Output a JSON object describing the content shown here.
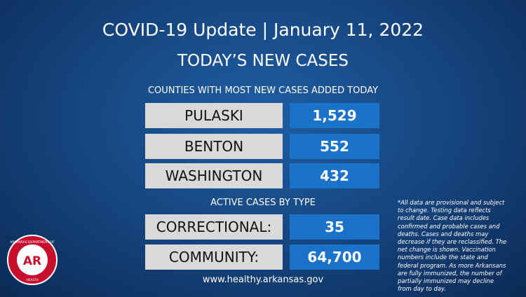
{
  "header": {
    "title": "COVID-19 Update",
    "separator": "|",
    "date": "January 11, 2022",
    "subtitle": "TODAY’S NEW CASES"
  },
  "counties": {
    "heading": "COUNTIES WITH MOST NEW CASES ADDED TODAY",
    "rows": [
      [
        "PULASKI",
        "1,529"
      ],
      [
        "BENTON",
        "552"
      ],
      [
        "WASHINGTON",
        "432"
      ]
    ]
  },
  "active": {
    "heading": "ACTIVE CASES BY TYPE",
    "rows": [
      [
        "CORRECTIONAL:",
        "35"
      ],
      [
        "COMMUNITY:",
        "64,700"
      ]
    ]
  },
  "footer": {
    "url": "www.healthy.arkansas.gov"
  },
  "note": "*All data are provisional and subject to change. Testing data reflects result date. Case data includes confirmed and probable cases and deaths. Cases and deaths may decrease if they are reclassified. The net change is shown. Vaccination numbers include the state and federal program. As more Arkansans are fully immunized, the number of partially immunized may decline from day to day.",
  "logo": {
    "top": "ARKANSAS DEPARTMENT OF",
    "mark": "AR",
    "bottom": "HEALTH"
  }
}
